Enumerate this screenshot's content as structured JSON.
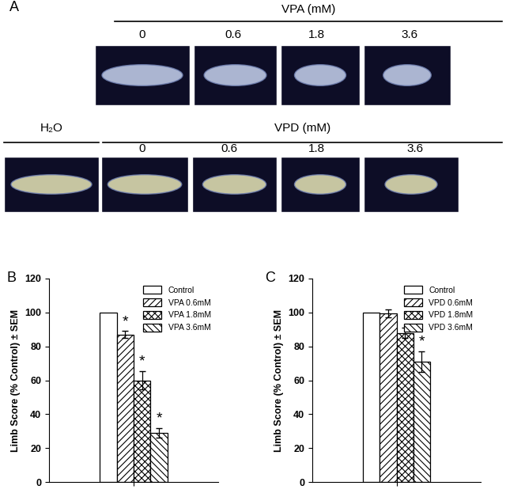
{
  "panel_a": {
    "title": "A",
    "rows": [
      {
        "group_label": "VPA (mM)",
        "columns": [
          "0",
          "0.6",
          "1.8",
          "3.6"
        ]
      },
      {
        "control_label": "H₂O",
        "group_label": "VPD (mM)",
        "columns": [
          "0",
          "0.6",
          "1.8",
          "3.6"
        ]
      }
    ]
  },
  "chart_data": [
    {
      "type": "bar",
      "title": "B",
      "ylabel": "Limb Score (% Control) ± SEM",
      "categories": [
        null
      ],
      "series": [
        {
          "name": "Control",
          "color": "#ffffff",
          "values": [
            100
          ]
        },
        {
          "name": "VPA 0.6mM",
          "color": "#ffffff",
          "values": [
            87
          ],
          "errors": [
            2
          ],
          "annotation": "*"
        },
        {
          "name": "VPA 1.8mM",
          "color": "#ffffff",
          "values": [
            60
          ],
          "errors": [
            5.5
          ],
          "annotation": "*"
        },
        {
          "name": "VPA 3.6mM",
          "color": "#ffffff",
          "values": [
            29
          ],
          "errors": [
            3
          ],
          "annotation": "*"
        }
      ],
      "ylim": [
        0,
        120
      ],
      "yticks": [
        0,
        20,
        40,
        60,
        80,
        100,
        120
      ],
      "legend": "upper right",
      "tick_labels": "y"
    },
    {
      "type": "bar",
      "title": "C",
      "ylabel": "Limb Score (% Control) ± SEM",
      "categories": [
        null
      ],
      "series": [
        {
          "name": "Control",
          "color": "#ffffff",
          "values": [
            100
          ]
        },
        {
          "name": "VPD 0.6mM",
          "color": "#ffffff",
          "values": [
            99.5
          ],
          "errors": [
            2.5
          ]
        },
        {
          "name": "VPD 1.8mM",
          "color": "#ffffff",
          "values": [
            88
          ],
          "errors": [
            3
          ]
        },
        {
          "name": "VPD 3.6mM",
          "color": "#ffffff",
          "values": [
            71
          ],
          "errors": [
            6
          ],
          "annotation": "*"
        }
      ],
      "ylim": [
        0,
        120
      ],
      "yticks": [
        0,
        20,
        40,
        60,
        80,
        100,
        120
      ],
      "legend": "upper right",
      "tick_labels": "y"
    }
  ]
}
